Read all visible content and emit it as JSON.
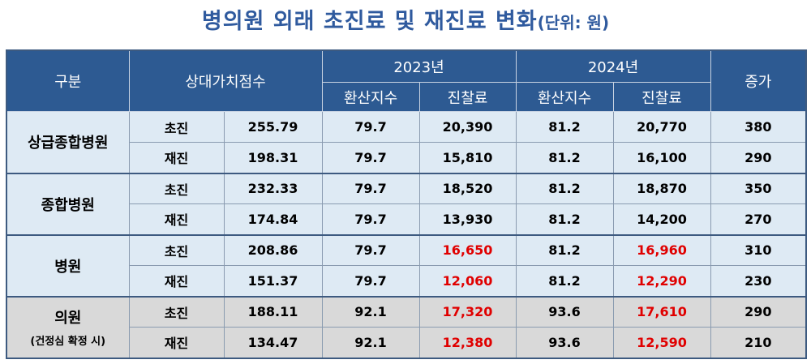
{
  "title": {
    "main": "병의원 외래 초진료 및 재진료 변화",
    "sub": "(단위: 원)"
  },
  "header": {
    "category": "구분",
    "relative_value": "상대가치점수",
    "year_2023": "2023년",
    "year_2024": "2024년",
    "increase": "증가",
    "conversion_index": "환산지수",
    "fee": "진찰료"
  },
  "groups": [
    {
      "name": "상급종합병원",
      "note": "",
      "rows": [
        {
          "type": "초진",
          "points": "255.79",
          "conv2023": "79.7",
          "fee2023": "20,390",
          "conv2024": "81.2",
          "fee2024": "20,770",
          "increase": "380"
        },
        {
          "type": "재진",
          "points": "198.31",
          "conv2023": "79.7",
          "fee2023": "15,810",
          "conv2024": "81.2",
          "fee2024": "16,100",
          "increase": "290"
        }
      ]
    },
    {
      "name": "종합병원",
      "note": "",
      "rows": [
        {
          "type": "초진",
          "points": "232.33",
          "conv2023": "79.7",
          "fee2023": "18,520",
          "conv2024": "81.2",
          "fee2024": "18,870",
          "increase": "350"
        },
        {
          "type": "재진",
          "points": "174.84",
          "conv2023": "79.7",
          "fee2023": "13,930",
          "conv2024": "81.2",
          "fee2024": "14,200",
          "increase": "270"
        }
      ]
    },
    {
      "name": "병원",
      "note": "",
      "rows": [
        {
          "type": "초진",
          "points": "208.86",
          "conv2023": "79.7",
          "fee2023": "16,650",
          "conv2024": "81.2",
          "fee2024": "16,960",
          "increase": "310"
        },
        {
          "type": "재진",
          "points": "151.37",
          "conv2023": "79.7",
          "fee2023": "12,060",
          "conv2024": "81.2",
          "fee2024": "12,290",
          "increase": "230"
        }
      ]
    },
    {
      "name": "의원",
      "note": "(건정심 확정 시)",
      "rows": [
        {
          "type": "초진",
          "points": "188.11",
          "conv2023": "92.1",
          "fee2023": "17,320",
          "conv2024": "93.6",
          "fee2024": "17,610",
          "increase": "290"
        },
        {
          "type": "재진",
          "points": "134.47",
          "conv2023": "92.1",
          "fee2023": "12,380",
          "conv2024": "93.6",
          "fee2024": "12,590",
          "increase": "210"
        }
      ]
    }
  ],
  "colors": {
    "title": "#2f5a9e",
    "header_bg": "#2d5a92",
    "row_blue": "#deeaf4",
    "row_grey": "#d9d9d9",
    "highlight_red": "#e00000"
  }
}
